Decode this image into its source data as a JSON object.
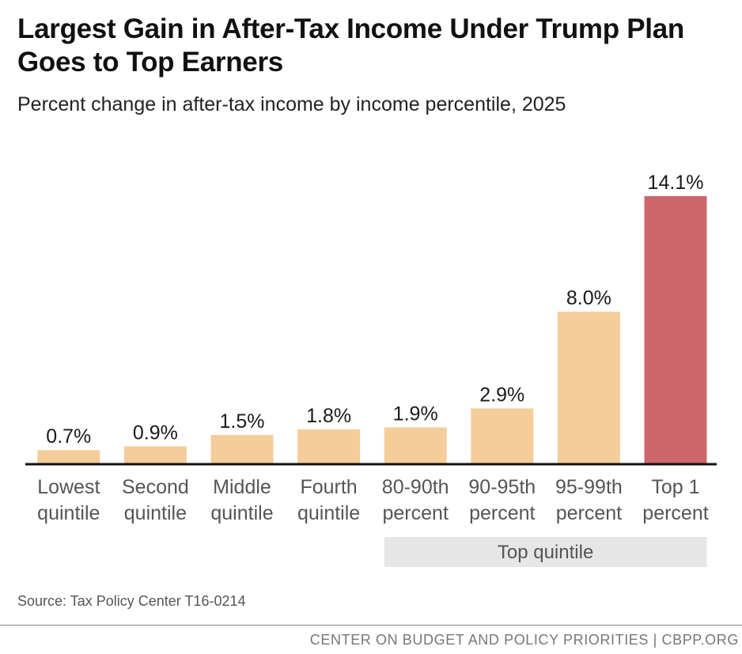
{
  "header": {
    "title": "Largest Gain in After-Tax Income Under Trump Plan Goes to Top Earners",
    "subtitle": "Percent change in after-tax income by income percentile, 2025"
  },
  "chart_data": {
    "type": "bar",
    "title": "Largest Gain in After-Tax Income Under Trump Plan Goes to Top Earners",
    "subtitle": "Percent change in after-tax income by income percentile, 2025",
    "categories": [
      [
        "Lowest",
        "quintile"
      ],
      [
        "Second",
        "quintile"
      ],
      [
        "Middle",
        "quintile"
      ],
      [
        "Fourth",
        "quintile"
      ],
      [
        "80-90th",
        "percent"
      ],
      [
        "90-95th",
        "percent"
      ],
      [
        "95-99th",
        "percent"
      ],
      [
        "Top 1",
        "percent"
      ]
    ],
    "values": [
      0.7,
      0.9,
      1.5,
      1.8,
      1.9,
      2.9,
      8.0,
      14.1
    ],
    "value_labels": [
      "0.7%",
      "0.9%",
      "1.5%",
      "1.8%",
      "1.9%",
      "2.9%",
      "8.0%",
      "14.1%"
    ],
    "bar_colors": [
      "#f5cd9a",
      "#f5cd9a",
      "#f5cd9a",
      "#f5cd9a",
      "#f5cd9a",
      "#f5cd9a",
      "#f5cd9a",
      "#cd676b"
    ],
    "group_bracket": {
      "label": "Top quintile",
      "from_index": 4,
      "to_index": 7,
      "color": "#e6e6e6"
    },
    "ylim": [
      0,
      14.1
    ],
    "xlabel": "",
    "ylabel": "",
    "grid": false
  },
  "source": "Source: Tax Policy Center T16-0214",
  "footer": "CENTER ON BUDGET AND POLICY PRIORITIES | CBPP.ORG"
}
